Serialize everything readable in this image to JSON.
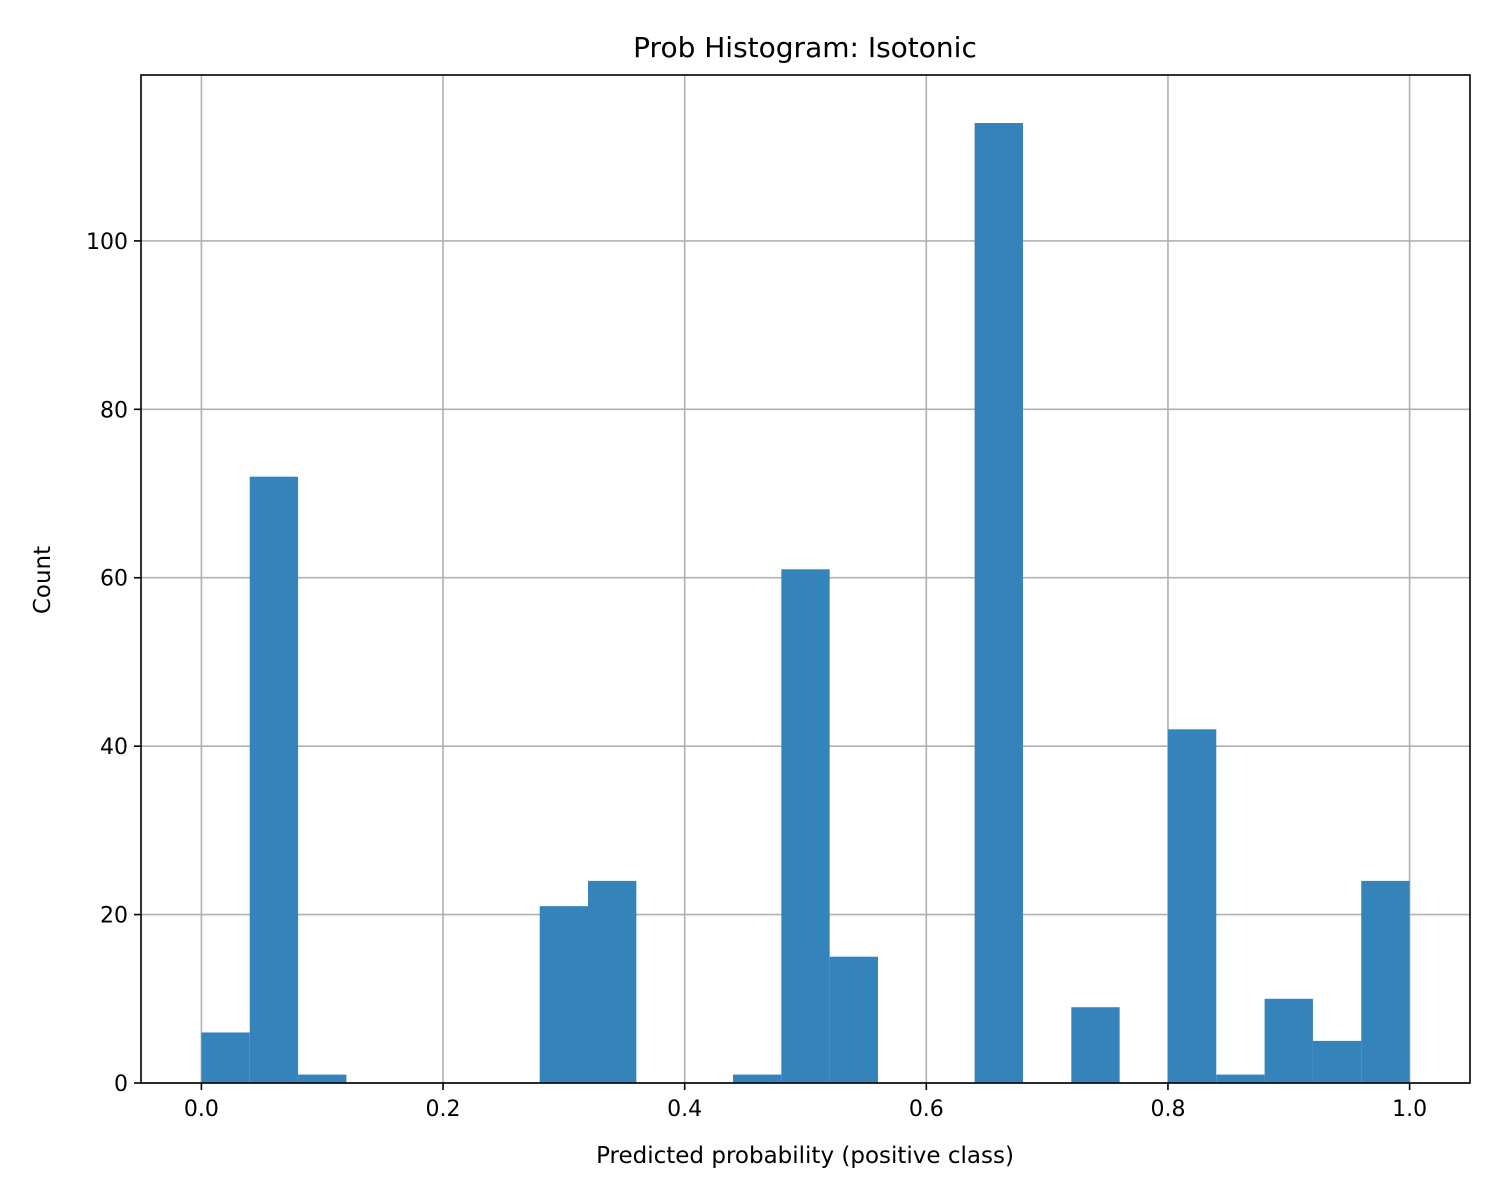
{
  "chart_data": {
    "type": "bar",
    "title": "Prob Histogram: Isotonic",
    "xlabel": "Predicted probability (positive class)",
    "ylabel": "Count",
    "xlim": [
      -0.05,
      1.05
    ],
    "ylim": [
      0,
      119.7
    ],
    "grid": true,
    "color": "#3583bb",
    "xticks": [
      0.0,
      0.2,
      0.4,
      0.6,
      0.8,
      1.0
    ],
    "xtick_labels": [
      "0.0",
      "0.2",
      "0.4",
      "0.6",
      "0.8",
      "1.0"
    ],
    "yticks": [
      0,
      20,
      40,
      60,
      80,
      100
    ],
    "ytick_labels": [
      "0",
      "20",
      "40",
      "60",
      "80",
      "100"
    ],
    "bin_edges": [
      0.0,
      0.04,
      0.08,
      0.12,
      0.16,
      0.2,
      0.24,
      0.28,
      0.32,
      0.36,
      0.4,
      0.44,
      0.48,
      0.52,
      0.56,
      0.6,
      0.64,
      0.68,
      0.72,
      0.76,
      0.8,
      0.84,
      0.88,
      0.92,
      0.96,
      1.0
    ],
    "values": [
      6,
      72,
      1,
      0,
      0,
      0,
      0,
      21,
      24,
      0,
      0,
      1,
      61,
      15,
      0,
      0,
      114,
      0,
      9,
      0,
      42,
      1,
      10,
      5,
      24
    ]
  }
}
